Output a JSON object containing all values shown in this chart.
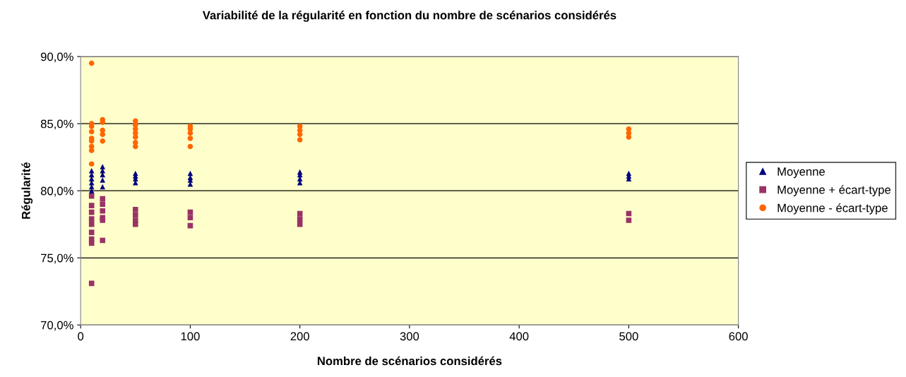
{
  "chart_data": {
    "type": "scatter",
    "title": "Variabilité de la régularité en fonction du nombre de scénarios considérés",
    "xlabel": "Nombre de scénarios considérés",
    "ylabel": "Régularité",
    "xlim": [
      0,
      600
    ],
    "xticks": [
      0,
      100,
      200,
      300,
      400,
      500,
      600
    ],
    "ylim": [
      70,
      90
    ],
    "yticks": [
      {
        "value": 70,
        "label": "70,0%"
      },
      {
        "value": 75,
        "label": "75,0%"
      },
      {
        "value": 80,
        "label": "80,0%"
      },
      {
        "value": 85,
        "label": "85,0%"
      },
      {
        "value": 90,
        "label": "90,0%"
      }
    ],
    "grid": "y",
    "legend": "right",
    "series": [
      {
        "name": "Moyenne",
        "color": "#000080",
        "marker": "triangle",
        "x": [
          10,
          10,
          10,
          10,
          10,
          10,
          20,
          20,
          20,
          20,
          20,
          50,
          50,
          50,
          50,
          100,
          100,
          100,
          100,
          200,
          200,
          200,
          200,
          500,
          500,
          500
        ],
        "values": [
          81.5,
          81.2,
          80.9,
          80.6,
          80.3,
          80.0,
          81.8,
          81.5,
          81.2,
          80.8,
          80.3,
          81.3,
          81.1,
          80.9,
          80.6,
          81.3,
          81.0,
          80.8,
          80.5,
          81.4,
          81.2,
          80.9,
          80.6,
          81.3,
          81.1,
          80.9
        ]
      },
      {
        "name": "Moyenne + écart-type",
        "color": "#993366",
        "marker": "square",
        "x": [
          10,
          10,
          10,
          10,
          10,
          10,
          10,
          10,
          10,
          20,
          20,
          20,
          20,
          20,
          20,
          50,
          50,
          50,
          50,
          100,
          100,
          100,
          200,
          200,
          200,
          500,
          500
        ],
        "values": [
          79.6,
          78.9,
          78.4,
          77.9,
          77.5,
          76.9,
          76.4,
          76.1,
          73.1,
          79.4,
          79.0,
          78.5,
          78.0,
          77.8,
          76.3,
          78.6,
          78.2,
          77.8,
          77.5,
          78.4,
          78.0,
          77.4,
          78.3,
          77.9,
          77.5,
          78.3,
          77.8
        ]
      },
      {
        "name": "Moyenne - écart-type",
        "color": "#ff6600",
        "marker": "circle",
        "x": [
          10,
          10,
          10,
          10,
          10,
          10,
          10,
          10,
          10,
          20,
          20,
          20,
          20,
          20,
          50,
          50,
          50,
          50,
          50,
          50,
          50,
          100,
          100,
          100,
          100,
          100,
          200,
          200,
          200,
          200,
          500,
          500,
          500
        ],
        "values": [
          89.5,
          85.0,
          84.8,
          84.4,
          83.9,
          83.7,
          83.3,
          83.0,
          82.0,
          85.3,
          85.1,
          84.5,
          84.2,
          83.7,
          85.2,
          84.9,
          84.6,
          84.3,
          84.0,
          83.6,
          83.3,
          84.8,
          84.6,
          84.3,
          83.9,
          83.3,
          84.8,
          84.5,
          84.2,
          83.8,
          84.6,
          84.3,
          84.0
        ]
      }
    ]
  }
}
